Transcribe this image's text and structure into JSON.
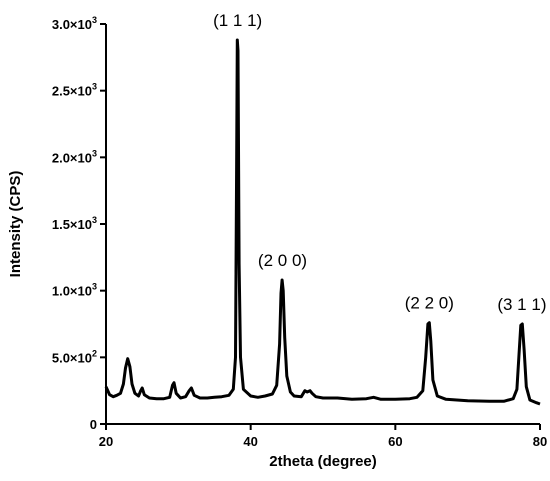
{
  "chart_data": {
    "type": "line",
    "title": "",
    "xlabel": "2theta (degree)",
    "ylabel": "Intensity (CPS)",
    "xlim": [
      20,
      80
    ],
    "ylim": [
      0,
      3000
    ],
    "grid": false,
    "x_ticks": [
      {
        "value": 20,
        "label": "20"
      },
      {
        "value": 40,
        "label": "40"
      },
      {
        "value": 60,
        "label": "60"
      },
      {
        "value": 80,
        "label": "80"
      }
    ],
    "y_ticks": [
      {
        "value": 0,
        "label": "0",
        "base": "",
        "exp": ""
      },
      {
        "value": 500,
        "label": "",
        "base": "5.0×10",
        "exp": "2"
      },
      {
        "value": 1000,
        "label": "",
        "base": "1.0×10",
        "exp": "3"
      },
      {
        "value": 1500,
        "label": "",
        "base": "1.5×10",
        "exp": "3"
      },
      {
        "value": 2000,
        "label": "",
        "base": "2.0×10",
        "exp": "3"
      },
      {
        "value": 2500,
        "label": "",
        "base": "2.5×10",
        "exp": "3"
      },
      {
        "value": 3000,
        "label": "",
        "base": "3.0×10",
        "exp": "3"
      }
    ],
    "series": [
      {
        "color": "#000000",
        "points": [
          [
            20,
            280
          ],
          [
            20.5,
            220
          ],
          [
            21,
            205
          ],
          [
            21.5,
            215
          ],
          [
            22,
            230
          ],
          [
            22.4,
            300
          ],
          [
            22.7,
            420
          ],
          [
            23,
            490
          ],
          [
            23.3,
            430
          ],
          [
            23.6,
            300
          ],
          [
            24,
            230
          ],
          [
            24.5,
            210
          ],
          [
            24.8,
            250
          ],
          [
            25,
            270
          ],
          [
            25.3,
            220
          ],
          [
            26,
            195
          ],
          [
            27,
            190
          ],
          [
            28,
            190
          ],
          [
            28.8,
            200
          ],
          [
            29.2,
            290
          ],
          [
            29.4,
            310
          ],
          [
            29.7,
            230
          ],
          [
            30.3,
            195
          ],
          [
            31,
            205
          ],
          [
            31.5,
            250
          ],
          [
            31.8,
            270
          ],
          [
            32.2,
            215
          ],
          [
            33,
            195
          ],
          [
            34,
            195
          ],
          [
            35,
            200
          ],
          [
            36,
            205
          ],
          [
            37,
            215
          ],
          [
            37.6,
            260
          ],
          [
            37.9,
            500
          ],
          [
            38.05,
            1900
          ],
          [
            38.15,
            2880
          ],
          [
            38.25,
            2800
          ],
          [
            38.4,
            1200
          ],
          [
            38.6,
            500
          ],
          [
            39,
            260
          ],
          [
            40,
            210
          ],
          [
            41,
            200
          ],
          [
            42,
            210
          ],
          [
            43,
            225
          ],
          [
            43.6,
            290
          ],
          [
            44,
            600
          ],
          [
            44.2,
            980
          ],
          [
            44.35,
            1080
          ],
          [
            44.5,
            1000
          ],
          [
            44.7,
            650
          ],
          [
            45,
            360
          ],
          [
            45.5,
            240
          ],
          [
            46,
            210
          ],
          [
            47,
            205
          ],
          [
            47.5,
            250
          ],
          [
            47.8,
            240
          ],
          [
            48.2,
            250
          ],
          [
            48.5,
            230
          ],
          [
            49,
            205
          ],
          [
            50,
            195
          ],
          [
            52,
            195
          ],
          [
            54,
            185
          ],
          [
            56,
            190
          ],
          [
            57,
            200
          ],
          [
            58,
            185
          ],
          [
            60,
            185
          ],
          [
            62,
            190
          ],
          [
            63,
            200
          ],
          [
            63.8,
            250
          ],
          [
            64.2,
            500
          ],
          [
            64.5,
            750
          ],
          [
            64.7,
            760
          ],
          [
            64.9,
            620
          ],
          [
            65.2,
            330
          ],
          [
            65.8,
            210
          ],
          [
            67,
            185
          ],
          [
            70,
            175
          ],
          [
            73,
            170
          ],
          [
            75,
            170
          ],
          [
            76.3,
            190
          ],
          [
            76.8,
            260
          ],
          [
            77.1,
            520
          ],
          [
            77.35,
            740
          ],
          [
            77.55,
            750
          ],
          [
            77.8,
            560
          ],
          [
            78.1,
            280
          ],
          [
            78.6,
            180
          ],
          [
            79.5,
            160
          ],
          [
            80,
            150
          ]
        ]
      }
    ],
    "annotations": [
      {
        "text": "(1 1 1)",
        "x": 38.2,
        "y": 2880
      },
      {
        "text": "(2 0 0)",
        "x": 44.4,
        "y": 1080
      },
      {
        "text": "(2 2 0)",
        "x": 64.7,
        "y": 760
      },
      {
        "text": "(3 1 1)",
        "x": 77.5,
        "y": 750
      }
    ]
  }
}
